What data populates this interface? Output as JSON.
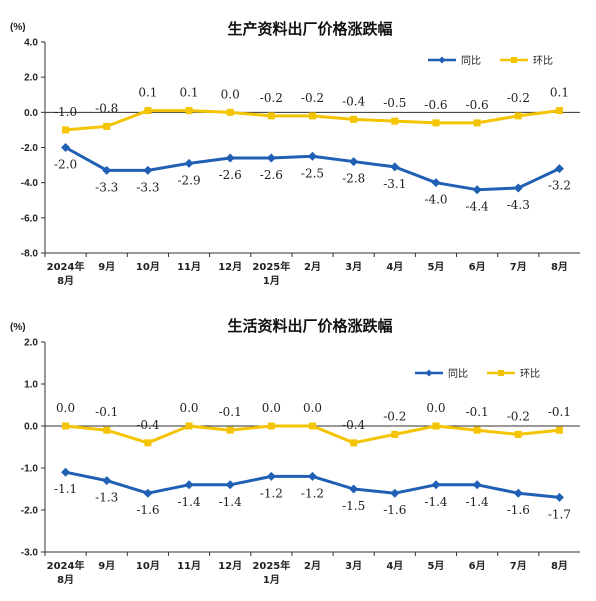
{
  "chart_data": [
    {
      "type": "line",
      "title": "生产资料出厂价格涨跌幅",
      "unit_label": "(%)",
      "ylim": [
        -8.0,
        4.0
      ],
      "yticks": [
        "4.0",
        "2.0",
        "0.0",
        "-2.0",
        "-4.0",
        "-6.0",
        "-8.0"
      ],
      "categories": [
        [
          "2024年",
          "8月"
        ],
        [
          "9月"
        ],
        [
          "10月"
        ],
        [
          "11月"
        ],
        [
          "12月"
        ],
        [
          "2025年",
          "1月"
        ],
        [
          "2月"
        ],
        [
          "3月"
        ],
        [
          "4月"
        ],
        [
          "5月"
        ],
        [
          "6月"
        ],
        [
          "7月"
        ],
        [
          "8月"
        ]
      ],
      "legend_position": "top-right",
      "series": [
        {
          "name": "同比",
          "color": "#1f5fb4",
          "marker": "diamond",
          "values": [
            -2.0,
            -3.3,
            -3.3,
            -2.9,
            -2.6,
            -2.6,
            -2.5,
            -2.8,
            -3.1,
            -4.0,
            -4.4,
            -4.3,
            -3.2
          ],
          "labels": [
            "-2.0",
            "-3.3",
            "-3.3",
            "-2.9",
            "-2.6",
            "-2.6",
            "-2.5",
            "-2.8",
            "-3.1",
            "-4.0",
            "-4.4",
            "-4.3",
            "-3.2"
          ]
        },
        {
          "name": "环比",
          "color": "#f5c400",
          "marker": "square",
          "values": [
            -1.0,
            -0.8,
            0.1,
            0.1,
            0.0,
            -0.2,
            -0.2,
            -0.4,
            -0.5,
            -0.6,
            -0.6,
            -0.2,
            0.1
          ],
          "labels": [
            "-1.0",
            "-0.8",
            "0.1",
            "0.1",
            "0.0",
            "-0.2",
            "-0.2",
            "-0.4",
            "-0.5",
            "-0.6",
            "-0.6",
            "-0.2",
            "0.1"
          ]
        }
      ]
    },
    {
      "type": "line",
      "title": "生活资料出厂价格涨跌幅",
      "unit_label": "(%)",
      "ylim": [
        -3.0,
        2.0
      ],
      "yticks": [
        "2.0",
        "1.0",
        "0.0",
        "-1.0",
        "-2.0",
        "-3.0"
      ],
      "categories": [
        [
          "2024年",
          "8月"
        ],
        [
          "9月"
        ],
        [
          "10月"
        ],
        [
          "11月"
        ],
        [
          "12月"
        ],
        [
          "2025年",
          "1月"
        ],
        [
          "2月"
        ],
        [
          "3月"
        ],
        [
          "4月"
        ],
        [
          "5月"
        ],
        [
          "6月"
        ],
        [
          "7月"
        ],
        [
          "8月"
        ]
      ],
      "legend_position": "top-right",
      "series": [
        {
          "name": "同比",
          "color": "#1f5fb4",
          "marker": "diamond",
          "values": [
            -1.1,
            -1.3,
            -1.6,
            -1.4,
            -1.4,
            -1.2,
            -1.2,
            -1.5,
            -1.6,
            -1.4,
            -1.4,
            -1.6,
            -1.7
          ],
          "labels": [
            "-1.1",
            "-1.3",
            "-1.6",
            "-1.4",
            "-1.4",
            "-1.2",
            "-1.2",
            "-1.5",
            "-1.6",
            "-1.4",
            "-1.4",
            "-1.6",
            "-1.7"
          ]
        },
        {
          "name": "环比",
          "color": "#f5c400",
          "marker": "square",
          "values": [
            0.0,
            -0.1,
            -0.4,
            0.0,
            -0.1,
            0.0,
            0.0,
            -0.4,
            -0.2,
            0.0,
            -0.1,
            -0.2,
            -0.1
          ],
          "labels": [
            "0.0",
            "-0.1",
            "-0.4",
            "0.0",
            "-0.1",
            "0.0",
            "0.0",
            "-0.4",
            "-0.2",
            "0.0",
            "-0.1",
            "-0.2",
            "-0.1"
          ]
        }
      ]
    }
  ]
}
